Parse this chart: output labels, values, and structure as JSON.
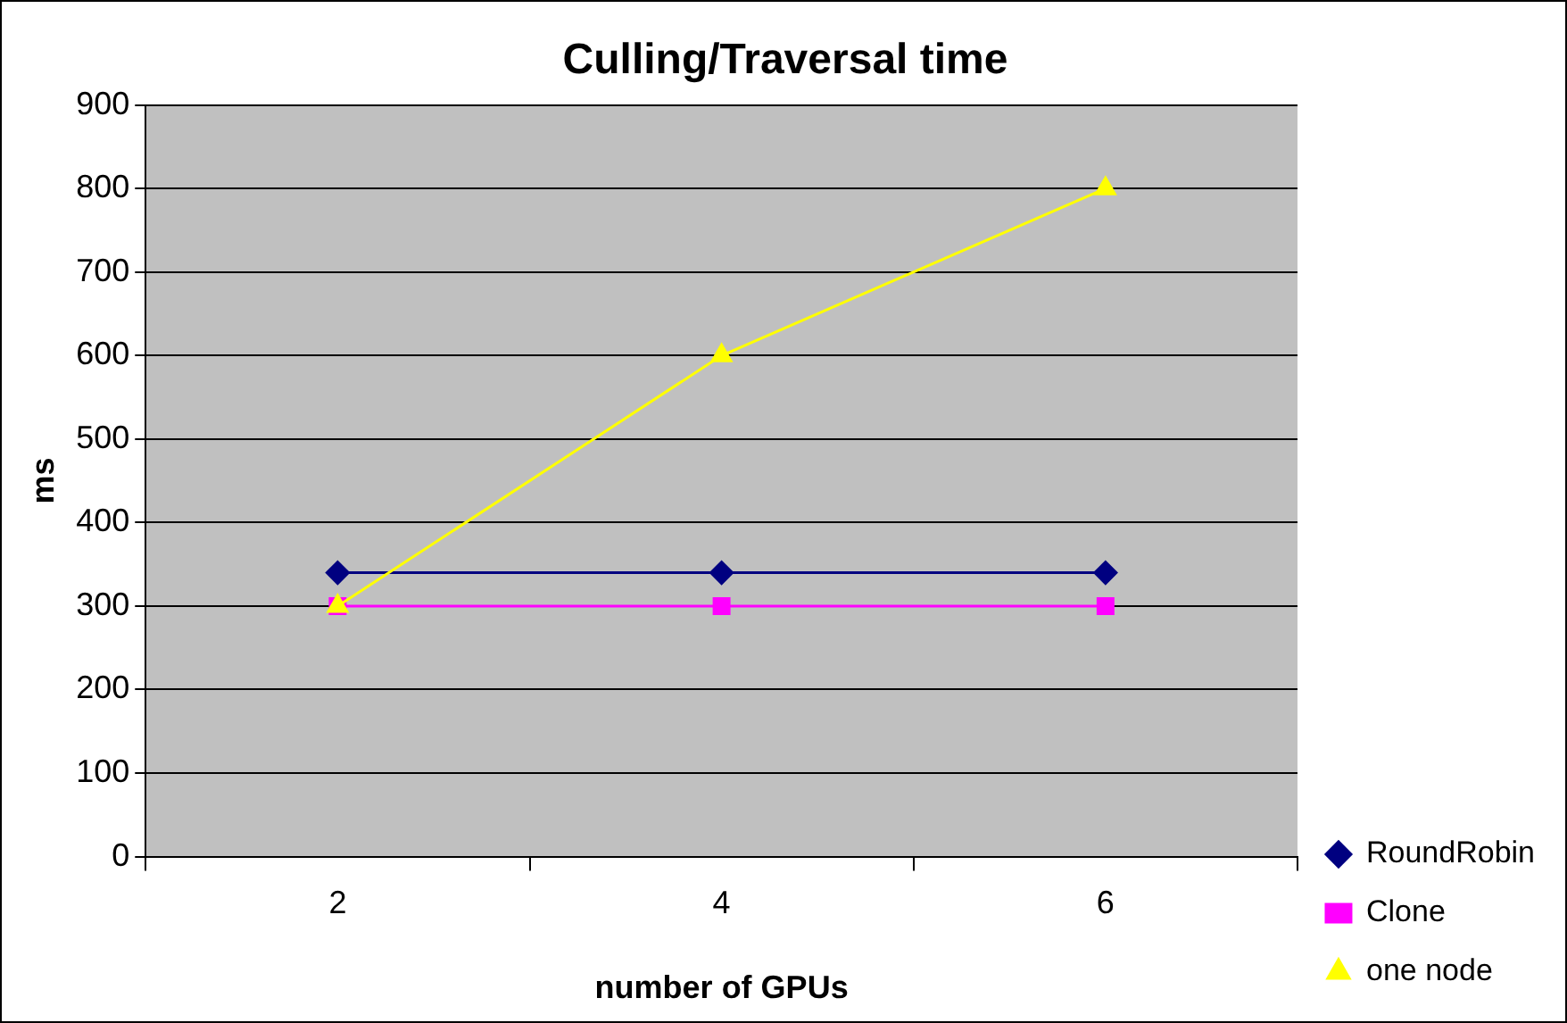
{
  "chart_data": {
    "type": "line",
    "title": "Culling/Traversal time",
    "xlabel": "number of GPUs",
    "ylabel": "ms",
    "categories": [
      "2",
      "4",
      "6"
    ],
    "series": [
      {
        "name": "RoundRobin",
        "color": "#000080",
        "values": [
          340,
          340,
          340
        ],
        "marker": "diamond"
      },
      {
        "name": "Clone",
        "color": "#ff00ff",
        "values": [
          300,
          300,
          300
        ],
        "marker": "square"
      },
      {
        "name": "one node",
        "color": "#ffff00",
        "values": [
          300,
          600,
          800
        ],
        "marker": "triangle"
      }
    ],
    "ylim": [
      0,
      900
    ],
    "yticks": [
      0,
      100,
      200,
      300,
      400,
      500,
      600,
      700,
      800,
      900
    ],
    "grid": "y",
    "legend": "bottom right",
    "line_style": "solid"
  }
}
